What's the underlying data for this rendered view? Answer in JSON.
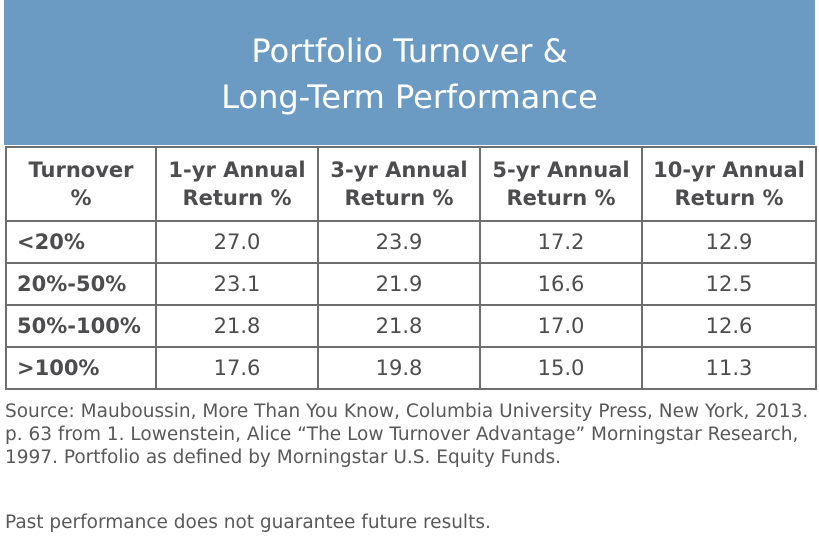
{
  "chart_data": {
    "type": "table",
    "title_line1": "Portfolio Turnover &",
    "title_line2": "Long-Term Performance",
    "columns": [
      {
        "line1": "Turnover",
        "line2": "%"
      },
      {
        "line1": "1-yr Annual",
        "line2": "Return %"
      },
      {
        "line1": "3-yr Annual",
        "line2": "Return %"
      },
      {
        "line1": "5-yr Annual",
        "line2": "Return %"
      },
      {
        "line1": "10-yr Annual",
        "line2": "Return %"
      }
    ],
    "rows": [
      {
        "label": "<20%",
        "values": [
          "27.0",
          "23.9",
          "17.2",
          "12.9"
        ]
      },
      {
        "label": "20%-50%",
        "values": [
          "23.1",
          "21.9",
          "16.6",
          "12.5"
        ]
      },
      {
        "label": "50%-100%",
        "values": [
          "21.8",
          "21.8",
          "17.0",
          "12.6"
        ]
      },
      {
        "label": ">100%",
        "values": [
          "17.6",
          "19.8",
          "15.0",
          "11.3"
        ]
      }
    ]
  },
  "source_text": "Source: Mauboussin, More Than You Know, Columbia University Press, New York, 2013. p. 63 from 1. Lowenstein, Alice “The Low Turnover Advantage” Morningstar Research, 1997. Portfolio as defined by Morningstar U.S. Equity Funds.",
  "disclaimer_text": "Past performance does not guarantee future results.",
  "colors": {
    "header_bg": "#6b9bc3",
    "text": "#4d4d4f",
    "border": "#6e6e6e"
  }
}
